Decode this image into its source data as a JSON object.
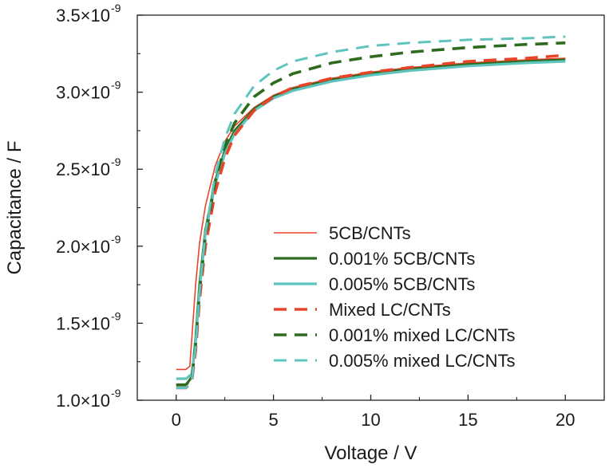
{
  "chart_data": {
    "type": "line",
    "title": "",
    "xlabel": "Voltage / V",
    "ylabel": "Capacitance / F",
    "xlim": [
      -2,
      22
    ],
    "ylim": [
      1e-09,
      3.5e-09
    ],
    "x_ticks": [
      0,
      5,
      10,
      15,
      20
    ],
    "x_tick_labels": [
      "0",
      "5",
      "10",
      "15",
      "20"
    ],
    "y_ticks": [
      1e-09,
      1.5e-09,
      2e-09,
      2.5e-09,
      3e-09,
      3.5e-09
    ],
    "y_tick_labels": [
      {
        "mantissa": "1.0×10",
        "exponent": "-9"
      },
      {
        "mantissa": "1.5×10",
        "exponent": "-9"
      },
      {
        "mantissa": "2.0×10",
        "exponent": "-9"
      },
      {
        "mantissa": "2.5×10",
        "exponent": "-9"
      },
      {
        "mantissa": "3.0×10",
        "exponent": "-9"
      },
      {
        "mantissa": "3.5×10",
        "exponent": "-9"
      }
    ],
    "grid": false,
    "legend_position": "lower-right",
    "series": [
      {
        "name": "5CB/CNTs",
        "color": "#e8442a",
        "style": "solid",
        "width": 1.6,
        "x": [
          0,
          0.5,
          0.7,
          0.8,
          1.0,
          1.2,
          1.5,
          2.0,
          2.5,
          3.0,
          4.0,
          5.0,
          6.0,
          8.0,
          10.0,
          12.0,
          15.0,
          18.0,
          20.0
        ],
        "y": [
          1.2e-09,
          1.2e-09,
          1.22e-09,
          1.4e-09,
          1.75e-09,
          2.02e-09,
          2.26e-09,
          2.52e-09,
          2.68e-09,
          2.78e-09,
          2.9e-09,
          2.98e-09,
          3.03e-09,
          3.09e-09,
          3.13e-09,
          3.16e-09,
          3.19e-09,
          3.21e-09,
          3.22e-09
        ]
      },
      {
        "name": "0.001% 5CB/CNTs",
        "color": "#2e6b1e",
        "style": "solid",
        "width": 3.2,
        "x": [
          0,
          0.5,
          0.8,
          1.0,
          1.2,
          1.5,
          2.0,
          2.5,
          3.0,
          4.0,
          5.0,
          6.0,
          8.0,
          10.0,
          12.0,
          15.0,
          18.0,
          20.0
        ],
        "y": [
          1.1e-09,
          1.1e-09,
          1.15e-09,
          1.4e-09,
          1.75e-09,
          2.1e-09,
          2.42e-09,
          2.62e-09,
          2.75e-09,
          2.89e-09,
          2.97e-09,
          3.02e-09,
          3.08e-09,
          3.12e-09,
          3.15e-09,
          3.18e-09,
          3.2e-09,
          3.21e-09
        ]
      },
      {
        "name": "0.005% 5CB/CNTs",
        "color": "#5fc4be",
        "style": "solid",
        "width": 3.2,
        "x": [
          0,
          0.5,
          0.8,
          1.0,
          1.2,
          1.5,
          2.0,
          2.5,
          3.0,
          4.0,
          5.0,
          6.0,
          8.0,
          10.0,
          12.0,
          15.0,
          18.0,
          20.0
        ],
        "y": [
          1.14e-09,
          1.14e-09,
          1.17e-09,
          1.38e-09,
          1.72e-09,
          2.08e-09,
          2.4e-09,
          2.6e-09,
          2.73e-09,
          2.88e-09,
          2.96e-09,
          3.01e-09,
          3.07e-09,
          3.11e-09,
          3.14e-09,
          3.17e-09,
          3.19e-09,
          3.2e-09
        ]
      },
      {
        "name": "Mixed LC/CNTs",
        "color": "#e8442a",
        "style": "dashed",
        "width": 3.6,
        "x": [
          0,
          0.5,
          0.8,
          1.0,
          1.2,
          1.5,
          2.0,
          2.5,
          3.0,
          4.0,
          5.0,
          6.0,
          8.0,
          10.0,
          12.0,
          15.0,
          18.0,
          20.0
        ],
        "y": [
          1.08e-09,
          1.08e-09,
          1.12e-09,
          1.32e-09,
          1.65e-09,
          2e-09,
          2.35e-09,
          2.57e-09,
          2.72e-09,
          2.88e-09,
          2.97e-09,
          3.03e-09,
          3.09e-09,
          3.13e-09,
          3.16e-09,
          3.2e-09,
          3.22e-09,
          3.24e-09
        ]
      },
      {
        "name": "0.001% mixed LC/CNTs",
        "color": "#2e6b1e",
        "style": "dashed",
        "width": 3.6,
        "x": [
          0,
          0.5,
          0.8,
          1.0,
          1.2,
          1.5,
          2.0,
          2.5,
          3.0,
          4.0,
          5.0,
          6.0,
          8.0,
          10.0,
          12.0,
          15.0,
          18.0,
          20.0
        ],
        "y": [
          1.1e-09,
          1.1e-09,
          1.14e-09,
          1.36e-09,
          1.7e-09,
          2.06e-09,
          2.42e-09,
          2.65e-09,
          2.8e-09,
          2.97e-09,
          3.06e-09,
          3.12e-09,
          3.19e-09,
          3.23e-09,
          3.26e-09,
          3.29e-09,
          3.31e-09,
          3.32e-09
        ]
      },
      {
        "name": "0.005% mixed LC/CNTs",
        "color": "#5fc4be",
        "style": "dashed",
        "width": 3.0,
        "x": [
          0,
          0.5,
          0.8,
          1.0,
          1.2,
          1.5,
          2.0,
          2.5,
          3.0,
          4.0,
          5.0,
          6.0,
          8.0,
          10.0,
          12.0,
          15.0,
          18.0,
          20.0
        ],
        "y": [
          1.08e-09,
          1.08e-09,
          1.12e-09,
          1.35e-09,
          1.7e-09,
          2.08e-09,
          2.46e-09,
          2.7e-09,
          2.86e-09,
          3.04e-09,
          3.14e-09,
          3.2e-09,
          3.26e-09,
          3.3e-09,
          3.32e-09,
          3.34e-09,
          3.35e-09,
          3.36e-09
        ]
      }
    ]
  }
}
